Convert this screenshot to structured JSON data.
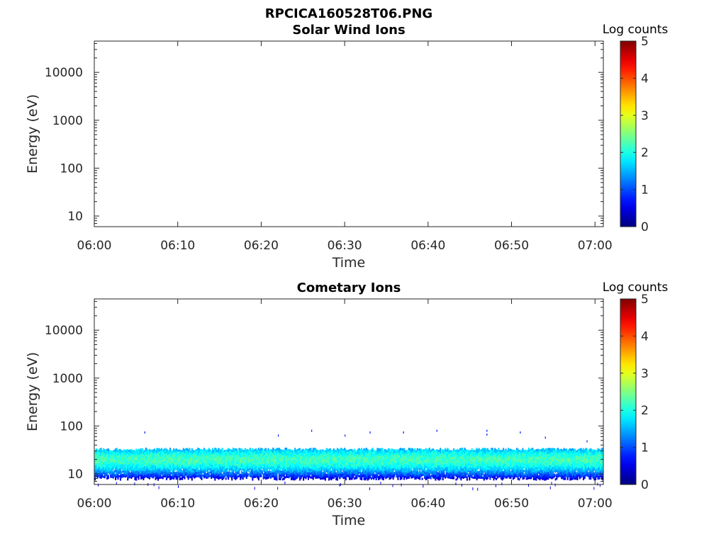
{
  "figure_title": "RPCICA160528T06.PNG",
  "chart_data": [
    {
      "type": "heatmap",
      "title": "Solar Wind Ions",
      "xlabel": "Time",
      "ylabel": "Energy (eV)",
      "y_scale": "log",
      "xlim": [
        "06:00",
        "07:01"
      ],
      "ylim": [
        6,
        45000
      ],
      "x_ticks": [
        "06:00",
        "06:10",
        "06:20",
        "06:30",
        "06:40",
        "06:50",
        "07:00"
      ],
      "y_ticks": [
        "10",
        "100",
        "1000",
        "10000"
      ],
      "colorbar": {
        "label": "Log counts",
        "min": 0,
        "max": 5,
        "ticks": [
          "0",
          "1",
          "2",
          "3",
          "4",
          "5"
        ],
        "colormap": "jet"
      },
      "data_note": "",
      "bands": []
    },
    {
      "type": "heatmap",
      "title": "Cometary Ions",
      "xlabel": "Time",
      "ylabel": "Energy (eV)",
      "y_scale": "log",
      "xlim": [
        "06:00",
        "07:01"
      ],
      "ylim": [
        6,
        45000
      ],
      "x_ticks": [
        "06:00",
        "06:10",
        "06:20",
        "06:30",
        "06:40",
        "06:50",
        "07:00"
      ],
      "y_ticks": [
        "10",
        "100",
        "1000",
        "10000"
      ],
      "colorbar": {
        "label": "Log counts",
        "min": 0,
        "max": 5,
        "ticks": [
          "0",
          "1",
          "2",
          "3",
          "4",
          "5"
        ],
        "colormap": "jet"
      },
      "bands": [
        {
          "energy_min_eV": 8,
          "energy_max_eV": 33,
          "core_energy_eV": 20,
          "core_log_counts": 2.2,
          "edge_log_counts": 0.5,
          "time_start": "06:00",
          "time_end": "07:01"
        }
      ],
      "sparse_hits": [
        {
          "time": "06:06",
          "energy_eV": 72
        },
        {
          "time": "06:22",
          "energy_eV": 62
        },
        {
          "time": "06:26",
          "energy_eV": 78
        },
        {
          "time": "06:30",
          "energy_eV": 62
        },
        {
          "time": "06:33",
          "energy_eV": 72
        },
        {
          "time": "06:37",
          "energy_eV": 72
        },
        {
          "time": "06:41",
          "energy_eV": 78
        },
        {
          "time": "06:47",
          "energy_eV": 78
        },
        {
          "time": "06:47",
          "energy_eV": 65
        },
        {
          "time": "06:51",
          "energy_eV": 72
        },
        {
          "time": "06:54",
          "energy_eV": 56
        },
        {
          "time": "06:59",
          "energy_eV": 47
        }
      ]
    }
  ]
}
